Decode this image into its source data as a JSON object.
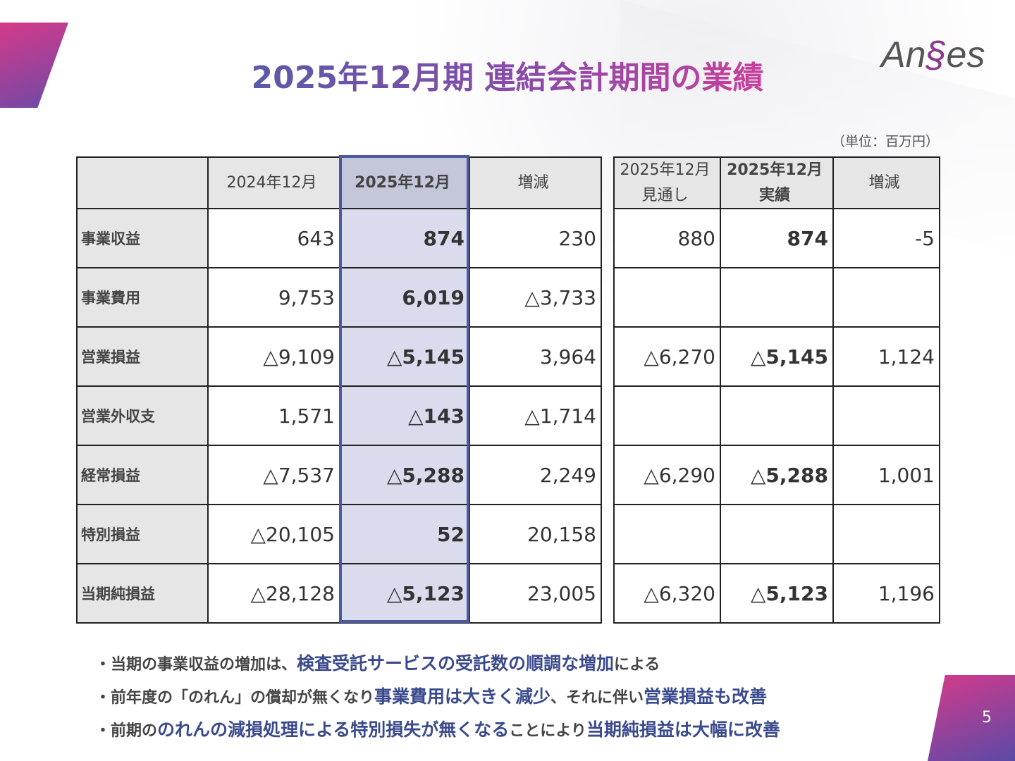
{
  "title": "2025年12月期 連結会計期間の業績",
  "logo": "AnGes",
  "unit": "（単位：百万円）",
  "page_number": "5",
  "table_left": {
    "headers": [
      "",
      "2024年12月",
      "2025年12月",
      "増減"
    ],
    "rows": [
      {
        "label": "事業収益",
        "values": [
          "643",
          "874",
          "230"
        ]
      },
      {
        "label": "事業費用",
        "values": [
          "9,753",
          "6,019",
          "△3,733"
        ]
      },
      {
        "label": "営業損益",
        "values": [
          "△9,109",
          "△5,145",
          "3,964"
        ]
      },
      {
        "label": "営業外収支",
        "values": [
          "1,571",
          "△143",
          "△1,714"
        ]
      },
      {
        "label": "経常損益",
        "values": [
          "△7,537",
          "△5,288",
          "2,249"
        ]
      },
      {
        "label": "特別損益",
        "values": [
          "△20,105",
          "52",
          "20,158"
        ]
      },
      {
        "label": "当期純損益",
        "values": [
          "△28,128",
          "△5,123",
          "23,005"
        ]
      }
    ]
  },
  "table_right": {
    "headers": [
      [
        "2025年12月",
        "見通し"
      ],
      [
        "2025年12月",
        "実績"
      ],
      [
        "増減",
        ""
      ]
    ],
    "rows": [
      [
        "880",
        "874",
        "-5"
      ],
      [
        "",
        "",
        ""
      ],
      [
        "△6,270",
        "△5,145",
        "1,124"
      ],
      [
        "",
        "",
        ""
      ],
      [
        "△6,290",
        "△5,288",
        "1,001"
      ],
      [
        "",
        "",
        ""
      ],
      [
        "△6,320",
        "△5,123",
        "1,196"
      ]
    ]
  },
  "bullets": [
    [
      {
        "t": "・当期の事業収益の増加は、",
        "e": false
      },
      {
        "t": "検査受託サービスの受託数の順調な増加",
        "e": true
      },
      {
        "t": "による",
        "e": false
      }
    ],
    [
      {
        "t": "・前年度の「のれん」の償却が無くなり",
        "e": false
      },
      {
        "t": "事業費用は大きく減少",
        "e": true
      },
      {
        "t": "、それに伴い",
        "e": false
      },
      {
        "t": "営業損益も改善",
        "e": true
      }
    ],
    [
      {
        "t": "・前期の",
        "e": false
      },
      {
        "t": "のれんの減損処理による特別損失が無くなる",
        "e": true
      },
      {
        "t": "ことにより",
        "e": false
      },
      {
        "t": "当期純損益は大幅に改善",
        "e": true
      }
    ]
  ]
}
